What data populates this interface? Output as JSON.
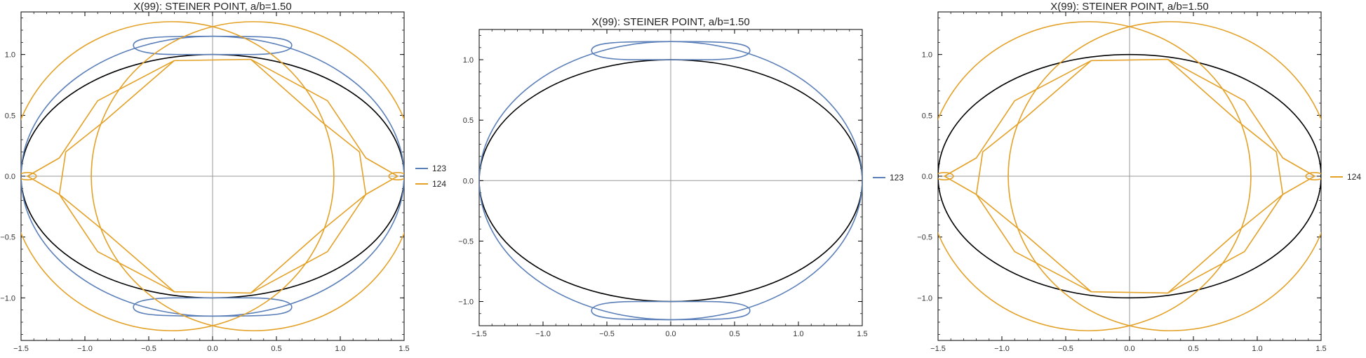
{
  "colors": {
    "background": "#ffffff",
    "frame": "#000000",
    "axis_line": "#999999",
    "ellipse": "#000000",
    "series_123": "#5b7fb8",
    "series_124": "#e3a127"
  },
  "chart_data": [
    {
      "type": "line",
      "title": "X(99): STEINER POINT, a/b=1.50",
      "xlim": [
        -1.5,
        1.5
      ],
      "ylim": [
        -1.35,
        1.35
      ],
      "x_ticks": [
        "-1.5",
        "-1.0",
        "-0.5",
        "0.0",
        "0.5",
        "1.0",
        "1.5"
      ],
      "y_ticks": [
        "-1.0",
        "-0.5",
        "0.0",
        "0.5",
        "1.0"
      ],
      "grid": false,
      "axes_through_origin": true,
      "legend_placement": "right",
      "legend": [
        "123",
        "124"
      ],
      "reference_curve": {
        "shape": "ellipse",
        "semi_axis_x": 1.5,
        "semi_axis_y": 1.0
      },
      "series": [
        {
          "name": "123",
          "components": [
            {
              "shape": "ellipse",
              "semi_axis_x": 1.5,
              "semi_axis_y": 1.15
            },
            {
              "shape": "loop",
              "x_range": [
                -0.62,
                0.62
              ],
              "y_outer": 1.15,
              "y_inner": 1.0
            },
            {
              "shape": "loop",
              "x_range": [
                -0.62,
                0.62
              ],
              "y_outer": -1.15,
              "y_inner": -1.0
            }
          ]
        },
        {
          "name": "124",
          "components": [
            {
              "shape": "circle",
              "center": [
                0.32,
                0.0
              ],
              "radius": 1.27
            },
            {
              "shape": "circle",
              "center": [
                -0.32,
                0.0
              ],
              "radius": 1.27
            },
            {
              "shape": "polyline",
              "points": [
                [
                  -0.3,
                  0.95
                ],
                [
                  0.3,
                  0.96
                ],
                [
                  0.9,
                  0.62
                ],
                [
                  1.2,
                  0.15
                ],
                [
                  1.45,
                  0.0
                ],
                [
                  1.2,
                  -0.15
                ],
                [
                  0.9,
                  -0.62
                ],
                [
                  0.3,
                  -0.96
                ],
                [
                  -0.3,
                  -0.95
                ],
                [
                  -0.9,
                  -0.62
                ],
                [
                  -1.2,
                  -0.15
                ],
                [
                  -1.45,
                  0.0
                ],
                [
                  -1.2,
                  0.15
                ],
                [
                  -0.9,
                  0.62
                ],
                [
                  -0.3,
                  0.95
                ]
              ]
            },
            {
              "shape": "polyline",
              "points": [
                [
                  -0.3,
                  0.95
                ],
                [
                  -0.85,
                  0.45
                ],
                [
                  -1.15,
                  0.2
                ],
                [
                  -1.2,
                  -0.15
                ],
                [
                  -0.85,
                  -0.45
                ],
                [
                  -0.3,
                  -0.95
                ]
              ]
            },
            {
              "shape": "polyline",
              "points": [
                [
                  0.3,
                  0.96
                ],
                [
                  0.85,
                  0.45
                ],
                [
                  1.15,
                  0.2
                ],
                [
                  1.2,
                  -0.15
                ],
                [
                  0.85,
                  -0.45
                ],
                [
                  0.3,
                  -0.96
                ]
              ]
            },
            {
              "shape": "loop",
              "center": [
                1.45,
                0.0
              ],
              "rx": 0.07,
              "ry": 0.03
            },
            {
              "shape": "loop",
              "center": [
                -1.45,
                0.0
              ],
              "rx": 0.07,
              "ry": 0.03
            }
          ]
        }
      ]
    },
    {
      "type": "line",
      "title": "X(99): STEINER POINT, a/b=1.50",
      "xlim": [
        -1.5,
        1.5
      ],
      "ylim": [
        -1.2,
        1.25
      ],
      "x_ticks": [
        "-1.5",
        "-1.0",
        "-0.5",
        "0.0",
        "0.5",
        "1.0",
        "1.5"
      ],
      "y_ticks": [
        "-1.0",
        "-0.5",
        "0.0",
        "0.5",
        "1.0"
      ],
      "grid": false,
      "axes_through_origin": true,
      "legend_placement": "right",
      "legend": [
        "123"
      ],
      "reference_curve": {
        "shape": "ellipse",
        "semi_axis_x": 1.5,
        "semi_axis_y": 1.0
      },
      "series": [
        {
          "name": "123",
          "components": [
            {
              "shape": "ellipse",
              "semi_axis_x": 1.5,
              "semi_axis_y": 1.15
            },
            {
              "shape": "loop",
              "x_range": [
                -0.62,
                0.62
              ],
              "y_outer": 1.15,
              "y_inner": 1.0
            },
            {
              "shape": "loop",
              "x_range": [
                -0.62,
                0.62
              ],
              "y_outer": -1.15,
              "y_inner": -1.0
            }
          ]
        }
      ]
    },
    {
      "type": "line",
      "title": "X(99): STEINER POINT, a/b=1.50",
      "xlim": [
        -1.5,
        1.5
      ],
      "ylim": [
        -1.35,
        1.35
      ],
      "x_ticks": [
        "-1.5",
        "-1.0",
        "-0.5",
        "0.0",
        "0.5",
        "1.0",
        "1.5"
      ],
      "y_ticks": [
        "-1.0",
        "-0.5",
        "0.0",
        "0.5",
        "1.0"
      ],
      "grid": false,
      "axes_through_origin": true,
      "legend_placement": "right",
      "legend": [
        "124"
      ],
      "reference_curve": {
        "shape": "ellipse",
        "semi_axis_x": 1.5,
        "semi_axis_y": 1.0
      },
      "series": [
        {
          "name": "124",
          "components": [
            {
              "shape": "circle",
              "center": [
                0.32,
                0.0
              ],
              "radius": 1.27
            },
            {
              "shape": "circle",
              "center": [
                -0.32,
                0.0
              ],
              "radius": 1.27
            },
            {
              "shape": "polyline",
              "points": [
                [
                  -0.3,
                  0.95
                ],
                [
                  0.3,
                  0.96
                ],
                [
                  0.9,
                  0.62
                ],
                [
                  1.2,
                  0.15
                ],
                [
                  1.45,
                  0.0
                ],
                [
                  1.2,
                  -0.15
                ],
                [
                  0.9,
                  -0.62
                ],
                [
                  0.3,
                  -0.96
                ],
                [
                  -0.3,
                  -0.95
                ],
                [
                  -0.9,
                  -0.62
                ],
                [
                  -1.2,
                  -0.15
                ],
                [
                  -1.45,
                  0.0
                ],
                [
                  -1.2,
                  0.15
                ],
                [
                  -0.9,
                  0.62
                ],
                [
                  -0.3,
                  0.95
                ]
              ]
            },
            {
              "shape": "polyline",
              "points": [
                [
                  -0.3,
                  0.95
                ],
                [
                  -0.85,
                  0.45
                ],
                [
                  -1.15,
                  0.2
                ],
                [
                  -1.2,
                  -0.15
                ],
                [
                  -0.85,
                  -0.45
                ],
                [
                  -0.3,
                  -0.95
                ]
              ]
            },
            {
              "shape": "polyline",
              "points": [
                [
                  0.3,
                  0.96
                ],
                [
                  0.85,
                  0.45
                ],
                [
                  1.15,
                  0.2
                ],
                [
                  1.2,
                  -0.15
                ],
                [
                  0.85,
                  -0.45
                ],
                [
                  0.3,
                  -0.96
                ]
              ]
            },
            {
              "shape": "loop",
              "center": [
                1.45,
                0.0
              ],
              "rx": 0.07,
              "ry": 0.03
            },
            {
              "shape": "loop",
              "center": [
                -1.45,
                0.0
              ],
              "rx": 0.07,
              "ry": 0.03
            }
          ]
        }
      ]
    }
  ]
}
